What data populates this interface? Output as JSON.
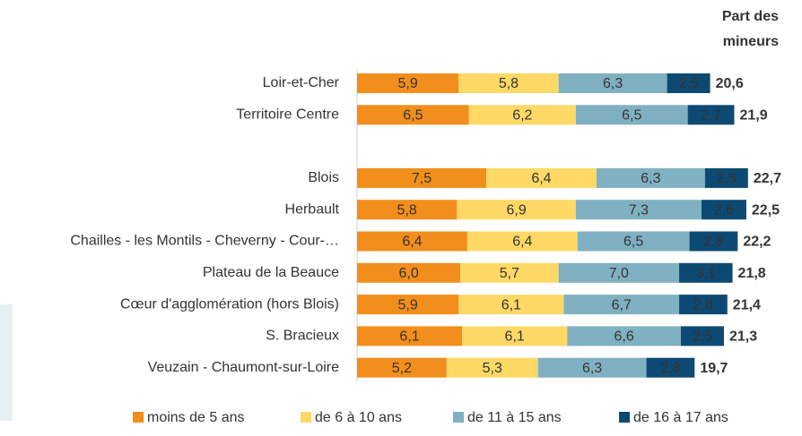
{
  "chart_data": {
    "type": "stacked-bar-horizontal",
    "categories": [
      "Loir-et-Cher",
      "Territoire Centre",
      null,
      "Blois",
      "Herbault",
      "Chailles - les Montils - Cheverny - Cour-…",
      "Plateau de la Beauce",
      "Cœur d'agglomération (hors Blois)",
      "S. Bracieux",
      "Veuzain - Chaumont-sur-Loire"
    ],
    "series": [
      {
        "name": "moins de 5 ans",
        "color": "#f28e1c",
        "values": [
          5.9,
          6.5,
          null,
          7.5,
          5.8,
          6.4,
          6.0,
          5.9,
          6.1,
          5.2
        ],
        "value_labels": [
          "5,9",
          "6,5",
          null,
          "7,5",
          "5,8",
          "6,4",
          "6,0",
          "5,9",
          "6,1",
          "5,2"
        ]
      },
      {
        "name": "de 6 à 10 ans",
        "color": "#ffd966",
        "values": [
          5.8,
          6.2,
          null,
          6.4,
          6.9,
          6.4,
          5.7,
          6.1,
          6.1,
          5.3
        ],
        "value_labels": [
          "5,8",
          "6,2",
          null,
          "6,4",
          "6,9",
          "6,4",
          "5,7",
          "6,1",
          "6,1",
          "5,3"
        ]
      },
      {
        "name": "de 11 à 15 ans",
        "color": "#80b1c2",
        "values": [
          6.3,
          6.5,
          null,
          6.3,
          7.3,
          6.5,
          7.0,
          6.7,
          6.6,
          6.3
        ],
        "value_labels": [
          "6,3",
          "6,5",
          null,
          "6,3",
          "7,3",
          "6,5",
          "7,0",
          "6,7",
          "6,6",
          "6,3"
        ]
      },
      {
        "name": "de 16 à 17 ans",
        "color": "#0d4a73",
        "values": [
          2.5,
          2.7,
          null,
          2.5,
          2.6,
          2.8,
          3.1,
          2.8,
          2.5,
          2.8
        ],
        "value_labels": [
          "2,5",
          "2,7",
          null,
          "2,5",
          "2,6",
          "2,8",
          "3,1",
          "2,8",
          "2,5",
          "2,8"
        ]
      }
    ],
    "total_header": [
      "Part des",
      "mineurs"
    ],
    "totals": [
      20.6,
      21.9,
      null,
      22.7,
      22.5,
      22.2,
      21.8,
      21.4,
      21.3,
      19.7
    ],
    "total_labels": [
      "20,6",
      "21,9",
      null,
      "22,7",
      "22,5",
      "22,2",
      "21,8",
      "21,4",
      "21,3",
      "19,7"
    ],
    "xlim": [
      0,
      25
    ]
  }
}
